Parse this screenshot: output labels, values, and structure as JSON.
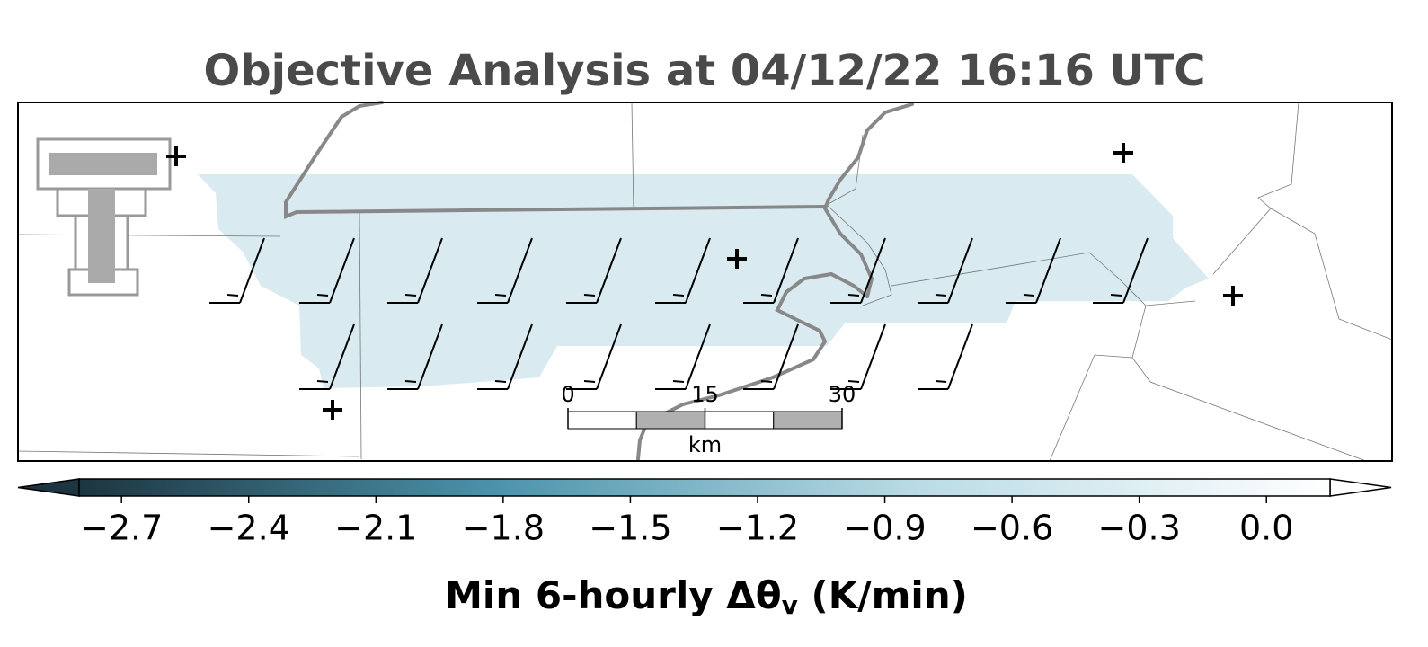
{
  "title": "Objective Analysis at 04/12/22 16:16 UTC",
  "colorbar": {
    "range": [
      -2.8,
      0.15
    ],
    "colors": [
      "#1d3540",
      "#4b93ac",
      "#b9dbe5",
      "#ffffff"
    ],
    "ticks": [
      {
        "value": -2.7,
        "label": "−2.7"
      },
      {
        "value": -2.4,
        "label": "−2.4"
      },
      {
        "value": -2.1,
        "label": "−2.1"
      },
      {
        "value": -1.8,
        "label": "−1.8"
      },
      {
        "value": -1.5,
        "label": "−1.5"
      },
      {
        "value": -1.2,
        "label": "−1.2"
      },
      {
        "value": -0.9,
        "label": "−0.9"
      },
      {
        "value": -0.6,
        "label": "−0.6"
      },
      {
        "value": -0.3,
        "label": "−0.3"
      },
      {
        "value": 0,
        "label": "0.0"
      }
    ],
    "label": {
      "main": "Min 6-hourly Δθ",
      "subscript": "v",
      "unit": " (K/min)"
    }
  },
  "scale_bar": {
    "ticks": [
      0,
      15,
      30
    ],
    "unit": "km"
  }
}
